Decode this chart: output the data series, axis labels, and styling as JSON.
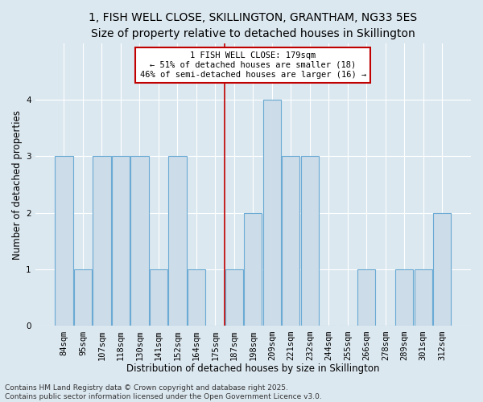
{
  "title_line1": "1, FISH WELL CLOSE, SKILLINGTON, GRANTHAM, NG33 5ES",
  "title_line2": "Size of property relative to detached houses in Skillington",
  "xlabel": "Distribution of detached houses by size in Skillington",
  "ylabel": "Number of detached properties",
  "categories": [
    "84sqm",
    "95sqm",
    "107sqm",
    "118sqm",
    "130sqm",
    "141sqm",
    "152sqm",
    "164sqm",
    "175sqm",
    "187sqm",
    "198sqm",
    "209sqm",
    "221sqm",
    "232sqm",
    "244sqm",
    "255sqm",
    "266sqm",
    "278sqm",
    "289sqm",
    "301sqm",
    "312sqm"
  ],
  "values": [
    3,
    1,
    3,
    3,
    3,
    1,
    3,
    1,
    0,
    1,
    2,
    4,
    3,
    3,
    0,
    0,
    1,
    0,
    1,
    1,
    2
  ],
  "bar_color": "#ccdce8",
  "bar_edge_color": "#6aaad4",
  "highlight_x": "175sqm",
  "highlight_line_color": "#c00000",
  "ylim": [
    0,
    5
  ],
  "yticks": [
    0,
    1,
    2,
    3,
    4
  ],
  "background_color": "#dce8f0",
  "annotation_text": "1 FISH WELL CLOSE: 179sqm\n← 51% of detached houses are smaller (18)\n46% of semi-detached houses are larger (16) →",
  "annotation_box_edge_color": "#c00000",
  "footer_text": "Contains HM Land Registry data © Crown copyright and database right 2025.\nContains public sector information licensed under the Open Government Licence v3.0.",
  "grid_color": "#ffffff",
  "title_fontsize": 10,
  "subtitle_fontsize": 9,
  "axis_label_fontsize": 8.5,
  "tick_fontsize": 7.5,
  "annotation_fontsize": 7.5,
  "footer_fontsize": 6.5
}
